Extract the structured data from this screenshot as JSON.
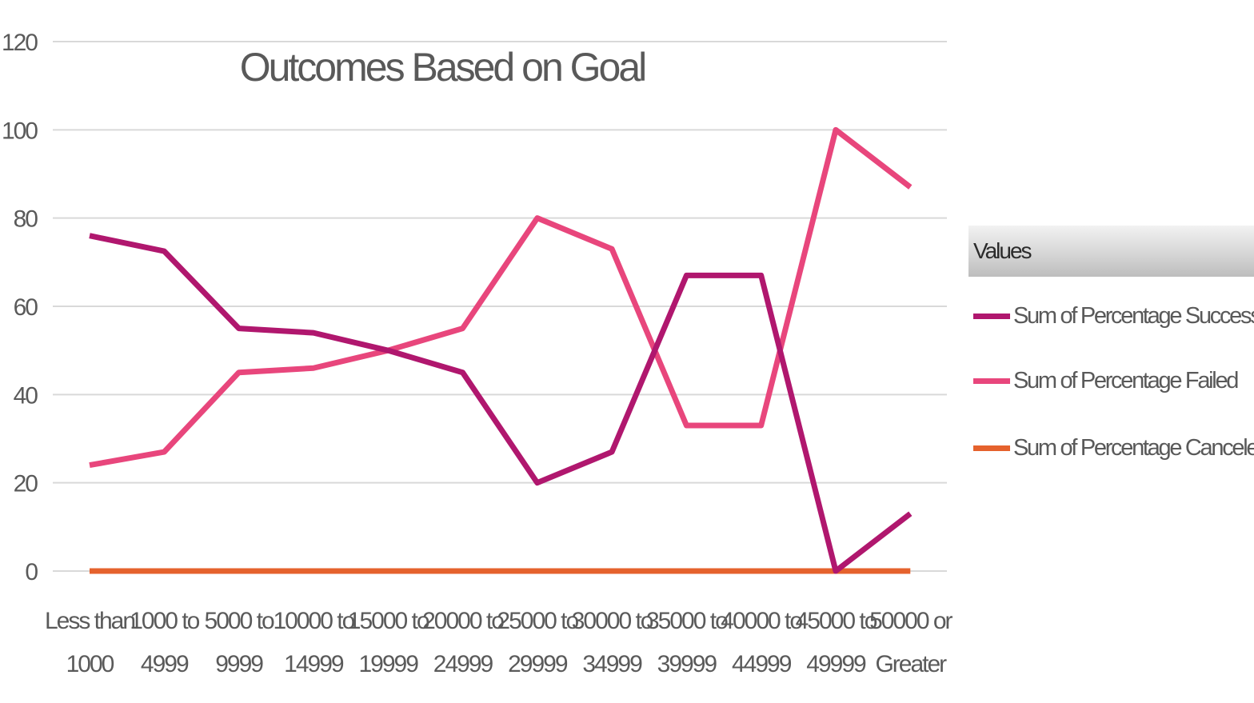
{
  "chart_data": {
    "type": "line",
    "title": "Outcomes Based on Goal",
    "categories": [
      [
        "Less than",
        "1000"
      ],
      [
        "1000 to",
        "4999"
      ],
      [
        "5000 to",
        "9999"
      ],
      [
        "10000 to",
        "14999"
      ],
      [
        "15000 to",
        "19999"
      ],
      [
        "20000 to",
        "24999"
      ],
      [
        "25000 to",
        "29999"
      ],
      [
        "30000 to",
        "34999"
      ],
      [
        "35000 to",
        "39999"
      ],
      [
        "40000 to",
        "44999"
      ],
      [
        "45000 to",
        "49999"
      ],
      [
        "50000 or",
        "Greater"
      ]
    ],
    "ylim": [
      0,
      120
    ],
    "yticks": [
      0,
      20,
      40,
      60,
      80,
      100,
      120
    ],
    "grid": true,
    "legend_position": "right",
    "series": [
      {
        "name": "Sum of Percentage Successful",
        "color": "#b0176e",
        "values": [
          76,
          72.5,
          55,
          54,
          50,
          45,
          20,
          27,
          67,
          67,
          0,
          13
        ]
      },
      {
        "name": "Sum of Percentage Failed",
        "color": "#e8467c",
        "values": [
          24,
          27,
          45,
          46,
          50,
          55,
          80,
          73,
          33,
          33,
          100,
          87
        ]
      },
      {
        "name": "Sum of Percentage Canceled",
        "color": "#e5622d",
        "values": [
          0,
          0,
          0,
          0,
          0,
          0,
          0,
          0,
          0,
          0,
          0,
          0
        ]
      }
    ]
  },
  "legend": {
    "header": "Values"
  }
}
